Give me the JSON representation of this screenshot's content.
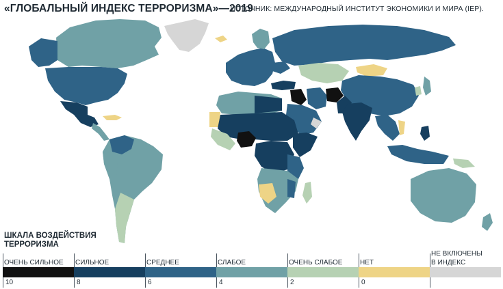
{
  "header": {
    "title": "«ГЛОБАЛЬНЫЙ ИНДЕКС ТЕРРОРИЗМА»—2019",
    "source": "ИСТОЧНИК: МЕЖДУНАРОДНЫЙ ИНСТИТУТ ЭКОНОМИКИ И МИРА (IEP)."
  },
  "legend": {
    "title_line1": "ШКАЛА ВОЗДЕЙСТВИЯ",
    "title_line2": "ТЕРРОРИЗМА",
    "items": [
      {
        "label": "ОЧЕНЬ СИЛЬНОЕ",
        "value": "10",
        "color": "#111111"
      },
      {
        "label": "СИЛЬНОЕ",
        "value": "8",
        "color": "#163f5f"
      },
      {
        "label": "СРЕДНЕЕ",
        "value": "6",
        "color": "#2f6387"
      },
      {
        "label": "СЛАБОЕ",
        "value": "4",
        "color": "#70a1a6"
      },
      {
        "label": "ОЧЕНЬ СЛАБОЕ",
        "value": "2",
        "color": "#b6d1b3"
      },
      {
        "label": "НЕТ",
        "value": "0",
        "color": "#eed486"
      },
      {
        "label_line1": "НЕ ВКЛЮЧЕНЫ",
        "label_line2": "В ИНДЕКС",
        "color": "#d6d6d6"
      }
    ]
  },
  "map": {
    "colors": {
      "very_strong": "#111111",
      "strong": "#163f5f",
      "medium": "#2f6387",
      "weak": "#70a1a6",
      "very_weak": "#b6d1b3",
      "none": "#eed486",
      "not_included": "#d6d6d6",
      "ocean": "#ffffff"
    }
  }
}
